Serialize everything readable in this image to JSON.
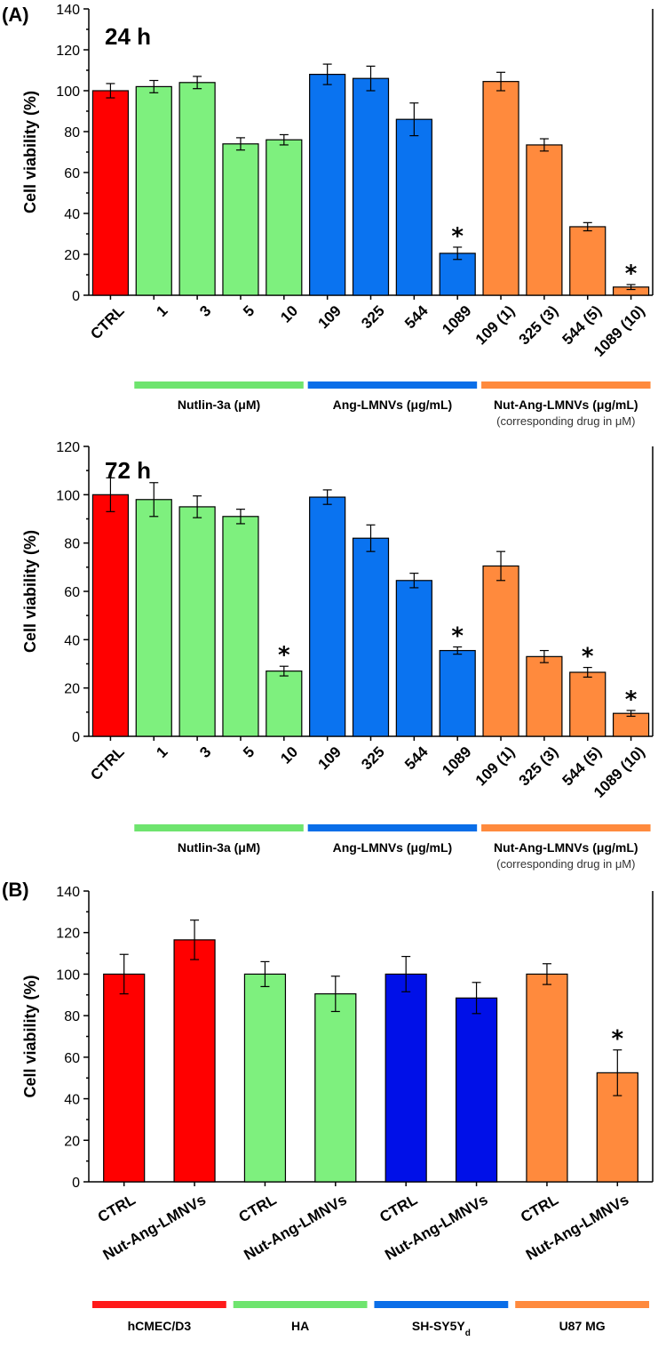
{
  "colors": {
    "red": "#ff0000",
    "green": "#7ef07e",
    "blue": "#0a73f0",
    "navy": "#0010e8",
    "orange": "#ff8a3d",
    "green_line": "#6ee46e",
    "blue_line": "#0a6ee8",
    "orange_line": "#ff8a3d",
    "red_line": "#ff1a1a"
  },
  "panels": {
    "A": {
      "label": "(A)"
    },
    "B": {
      "label": "(B)"
    }
  },
  "chart_data": [
    {
      "type": "bar",
      "id": "A-24h",
      "title": "24 h",
      "ylabel": "Cell viability (%)",
      "ylim": [
        0,
        140
      ],
      "yticks": [
        0,
        20,
        40,
        60,
        80,
        100,
        120,
        140
      ],
      "categories": [
        "CTRL",
        "1",
        "3",
        "5",
        "10",
        "109",
        "325",
        "544",
        "1089",
        "109 (1)",
        "325 (3)",
        "544 (5)",
        "1089 (10)"
      ],
      "values": [
        100,
        102,
        104,
        74,
        76,
        108,
        106,
        86,
        20.5,
        104.5,
        73.5,
        33.5,
        4
      ],
      "errors": [
        3.5,
        3,
        3,
        3,
        2.5,
        5,
        6,
        8,
        3,
        4.5,
        3,
        2,
        1.2
      ],
      "colors": [
        "red",
        "green",
        "green",
        "green",
        "green",
        "blue",
        "blue",
        "blue",
        "blue",
        "orange",
        "orange",
        "orange",
        "orange"
      ],
      "significant": [
        false,
        false,
        false,
        false,
        false,
        false,
        false,
        false,
        true,
        false,
        false,
        false,
        true
      ],
      "star": "*",
      "groups": [
        {
          "label": "Nutlin-3a (μM)",
          "color": "green_line",
          "from": 1,
          "to": 4
        },
        {
          "label": "Ang-LMNVs (μg/mL)",
          "color": "blue_line",
          "from": 5,
          "to": 8
        },
        {
          "label": "Nut-Ang-LMNVs (μg/mL)",
          "note": "(corresponding drug in μM)",
          "color": "orange_line",
          "from": 9,
          "to": 12
        }
      ]
    },
    {
      "type": "bar",
      "id": "A-72h",
      "title": "72 h",
      "ylabel": "Cell viability (%)",
      "ylim": [
        0,
        120
      ],
      "yticks": [
        0,
        20,
        40,
        60,
        80,
        100,
        120
      ],
      "categories": [
        "CTRL",
        "1",
        "3",
        "5",
        "10",
        "109",
        "325",
        "544",
        "1089",
        "109 (1)",
        "325 (3)",
        "544 (5)",
        "1089 (10)"
      ],
      "values": [
        100,
        98,
        95,
        91,
        27,
        99,
        82,
        64.5,
        35.5,
        70.5,
        33,
        26.5,
        9.5
      ],
      "errors": [
        7,
        7,
        4.5,
        3,
        2,
        3,
        5.5,
        3,
        1.5,
        6,
        2.5,
        2,
        1.2
      ],
      "colors": [
        "red",
        "green",
        "green",
        "green",
        "green",
        "blue",
        "blue",
        "blue",
        "blue",
        "orange",
        "orange",
        "orange",
        "orange"
      ],
      "significant": [
        false,
        false,
        false,
        false,
        true,
        false,
        false,
        false,
        true,
        false,
        false,
        true,
        true
      ],
      "star": "*",
      "groups": [
        {
          "label": "Nutlin-3a (μM)",
          "color": "green_line",
          "from": 1,
          "to": 4
        },
        {
          "label": "Ang-LMNVs (μg/mL)",
          "color": "blue_line",
          "from": 5,
          "to": 8
        },
        {
          "label": "Nut-Ang-LMNVs (μg/mL)",
          "note": "(corresponding drug in μM)",
          "color": "orange_line",
          "from": 9,
          "to": 12
        }
      ]
    },
    {
      "type": "bar",
      "id": "B",
      "title": "",
      "ylabel": "Cell viability (%)",
      "ylim": [
        0,
        140
      ],
      "yticks": [
        0,
        20,
        40,
        60,
        80,
        100,
        120,
        140
      ],
      "categories": [
        "CTRL",
        "Nut-Ang-LMNVs",
        "CTRL",
        "Nut-Ang-LMNVs",
        "CTRL",
        "Nut-Ang-LMNVs",
        "CTRL",
        "Nut-Ang-LMNVs"
      ],
      "values": [
        100,
        116.5,
        100,
        90.5,
        100,
        88.5,
        100,
        52.5
      ],
      "errors": [
        9.5,
        9.5,
        6,
        8.5,
        8.5,
        7.5,
        5,
        11
      ],
      "colors": [
        "red",
        "red",
        "green",
        "green",
        "navy",
        "navy",
        "orange",
        "orange"
      ],
      "significant": [
        false,
        false,
        false,
        false,
        false,
        false,
        false,
        true
      ],
      "star": "*",
      "groups": [
        {
          "label": "hCMEC/D3",
          "color": "red_line",
          "from": 0,
          "to": 1
        },
        {
          "label": "HA",
          "color": "green_line",
          "from": 2,
          "to": 3
        },
        {
          "label": "SH-SY5Y",
          "sub": "d",
          "color": "blue_line",
          "from": 4,
          "to": 5
        },
        {
          "label": "U87 MG",
          "color": "orange_line",
          "from": 6,
          "to": 7
        }
      ]
    }
  ]
}
